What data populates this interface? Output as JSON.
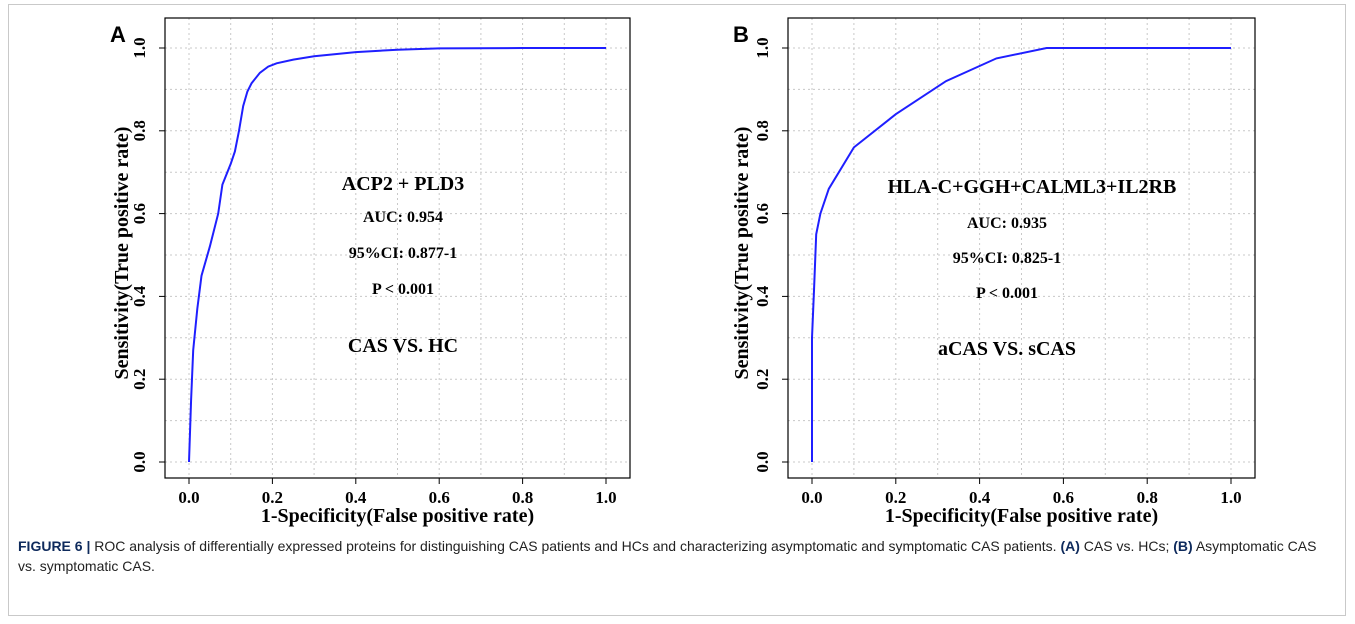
{
  "chart_data": [
    {
      "panel": "A",
      "type": "line",
      "xlabel": "1-Specificity(False positive rate)",
      "ylabel": "Sensitivity(True positive rate)",
      "xlim": [
        0,
        1
      ],
      "ylim": [
        0,
        1
      ],
      "xticks": [
        "0.0",
        "0.2",
        "0.4",
        "0.6",
        "0.8",
        "1.0"
      ],
      "yticks": [
        "0.0",
        "0.2",
        "0.4",
        "0.6",
        "0.8",
        "1.0"
      ],
      "grid": true,
      "line_color": "#1f1fff",
      "annotations": [
        "ACP2 + PLD3",
        "AUC: 0.954",
        "95%CI: 0.877-1",
        "P < 0.001",
        "CAS VS. HC"
      ],
      "x": [
        0.0,
        0.005,
        0.01,
        0.02,
        0.03,
        0.05,
        0.07,
        0.08,
        0.1,
        0.11,
        0.12,
        0.13,
        0.14,
        0.15,
        0.17,
        0.19,
        0.21,
        0.25,
        0.3,
        0.4,
        0.5,
        0.6,
        0.8,
        1.0
      ],
      "y": [
        0.0,
        0.15,
        0.27,
        0.37,
        0.45,
        0.52,
        0.6,
        0.67,
        0.72,
        0.75,
        0.8,
        0.86,
        0.895,
        0.915,
        0.94,
        0.955,
        0.963,
        0.972,
        0.98,
        0.99,
        0.996,
        0.999,
        1.0,
        1.0
      ]
    },
    {
      "panel": "B",
      "type": "line",
      "xlabel": "1-Specificity(False positive rate)",
      "ylabel": "Sensitivity(True positive rate)",
      "xlim": [
        0,
        1
      ],
      "ylim": [
        0,
        1
      ],
      "xticks": [
        "0.0",
        "0.2",
        "0.4",
        "0.6",
        "0.8",
        "1.0"
      ],
      "yticks": [
        "0.0",
        "0.2",
        "0.4",
        "0.6",
        "0.8",
        "1.0"
      ],
      "grid": true,
      "line_color": "#1f1fff",
      "annotations": [
        "HLA-C+GGH+CALML3+IL2RB",
        "AUC: 0.935",
        "95%CI: 0.825-1",
        "P < 0.001",
        "aCAS VS. sCAS"
      ],
      "x": [
        0.0,
        0.0,
        0.005,
        0.01,
        0.02,
        0.04,
        0.1,
        0.2,
        0.32,
        0.44,
        0.56,
        1.0
      ],
      "y": [
        0.0,
        0.3,
        0.42,
        0.55,
        0.6,
        0.66,
        0.76,
        0.84,
        0.92,
        0.975,
        1.0,
        1.0
      ]
    }
  ],
  "caption": {
    "label": "FIGURE 6 |",
    "text": " ROC analysis of differentially expressed proteins for distinguishing CAS patients and HCs and characterizing asymptomatic and symptomatic CAS patients. ",
    "a_tag": "(A)",
    "a_text": " CAS vs. HCs; ",
    "b_tag": "(B)",
    "b_text": " Asymptomatic CAS vs. symptomatic CAS."
  }
}
